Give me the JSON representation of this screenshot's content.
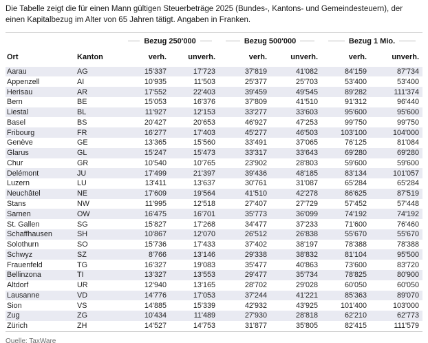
{
  "intro_text": "Die Tabelle zeigt die für einen Mann gültigen Steuerbeträge 2025 (Bundes-, Kantons- und Gemeindesteuern), der einen Kapitalbezug im Alter von 65 Jahren tätigt. Angaben in Franken.",
  "footer": {
    "source_label": "Quelle: TaxWare"
  },
  "colors": {
    "stripe": "#e9eaf2",
    "rule": "#c9c9c9",
    "group_line": "#bdbdbd",
    "text": "#222222",
    "muted": "#6d6d6d"
  },
  "chart_data": {
    "type": "table",
    "title": "Steuerbeträge 2025 bei Kapitalbezug im Alter von 65 Jahren (Mann), Angaben in Franken",
    "column_groups": [
      "Bezug 250'000",
      "Bezug 500'000",
      "Bezug 1 Mio."
    ],
    "columns": [
      "Ort",
      "Kanton",
      "verh.",
      "unverh.",
      "verh.",
      "unverh.",
      "verh.",
      "unverh."
    ],
    "rows": [
      [
        "Aarau",
        "AG",
        "15'337",
        "17'723",
        "37'819",
        "41'082",
        "84'159",
        "87'734"
      ],
      [
        "Appenzell",
        "AI",
        "10'935",
        "11'503",
        "25'377",
        "25'703",
        "53'400",
        "53'400"
      ],
      [
        "Herisau",
        "AR",
        "17'552",
        "22'403",
        "39'459",
        "49'545",
        "89'282",
        "111'374"
      ],
      [
        "Bern",
        "BE",
        "15'053",
        "16'376",
        "37'809",
        "41'510",
        "91'312",
        "96'440"
      ],
      [
        "Liestal",
        "BL",
        "11'927",
        "12'153",
        "33'277",
        "33'603",
        "95'600",
        "95'600"
      ],
      [
        "Basel",
        "BS",
        "20'427",
        "20'653",
        "46'927",
        "47'253",
        "99'750",
        "99'750"
      ],
      [
        "Fribourg",
        "FR",
        "16'277",
        "17'403",
        "45'277",
        "46'503",
        "103'100",
        "104'000"
      ],
      [
        "Genève",
        "GE",
        "13'365",
        "15'560",
        "33'491",
        "37'065",
        "76'125",
        "81'084"
      ],
      [
        "Glarus",
        "GL",
        "15'247",
        "15'473",
        "33'317",
        "33'643",
        "69'280",
        "69'280"
      ],
      [
        "Chur",
        "GR",
        "10'540",
        "10'765",
        "23'902",
        "28'803",
        "59'600",
        "59'600"
      ],
      [
        "Delémont",
        "JU",
        "17'499",
        "21'397",
        "39'436",
        "48'185",
        "83'134",
        "101'057"
      ],
      [
        "Luzern",
        "LU",
        "13'411",
        "13'637",
        "30'761",
        "31'087",
        "65'284",
        "65'284"
      ],
      [
        "Neuchâtel",
        "NE",
        "17'609",
        "19'564",
        "41'510",
        "42'278",
        "86'625",
        "87'519"
      ],
      [
        "Stans",
        "NW",
        "11'995",
        "12'518",
        "27'407",
        "27'729",
        "57'452",
        "57'448"
      ],
      [
        "Sarnen",
        "OW",
        "16'475",
        "16'701",
        "35'773",
        "36'099",
        "74'192",
        "74'192"
      ],
      [
        "St. Gallen",
        "SG",
        "15'827",
        "17'268",
        "34'477",
        "37'233",
        "71'600",
        "76'460"
      ],
      [
        "Schaffhausen",
        "SH",
        "10'867",
        "12'070",
        "26'512",
        "26'838",
        "55'670",
        "55'670"
      ],
      [
        "Solothurn",
        "SO",
        "15'736",
        "17'433",
        "37'402",
        "38'197",
        "78'388",
        "78'388"
      ],
      [
        "Schwyz",
        "SZ",
        "8'766",
        "13'146",
        "29'338",
        "38'832",
        "81'104",
        "95'500"
      ],
      [
        "Frauenfeld",
        "TG",
        "16'327",
        "19'083",
        "35'477",
        "40'863",
        "73'600",
        "83'720"
      ],
      [
        "Bellinzona",
        "TI",
        "13'327",
        "13'553",
        "29'477",
        "35'734",
        "78'825",
        "80'900"
      ],
      [
        "Altdorf",
        "UR",
        "12'940",
        "13'165",
        "28'702",
        "29'028",
        "60'050",
        "60'050"
      ],
      [
        "Lausanne",
        "VD",
        "14'776",
        "17'053",
        "37'244",
        "41'221",
        "85'363",
        "89'070"
      ],
      [
        "Sion",
        "VS",
        "14'885",
        "15'339",
        "42'932",
        "43'925",
        "101'400",
        "103'000"
      ],
      [
        "Zug",
        "ZG",
        "10'434",
        "11'489",
        "27'930",
        "28'818",
        "62'210",
        "62'773"
      ],
      [
        "Zürich",
        "ZH",
        "14'527",
        "14'753",
        "31'877",
        "35'805",
        "82'415",
        "111'579"
      ]
    ],
    "layout_hints": {
      "striped_rows": "odd",
      "numeric_alignment": "right",
      "group_header_style": "label flanked by horizontal rules"
    }
  }
}
